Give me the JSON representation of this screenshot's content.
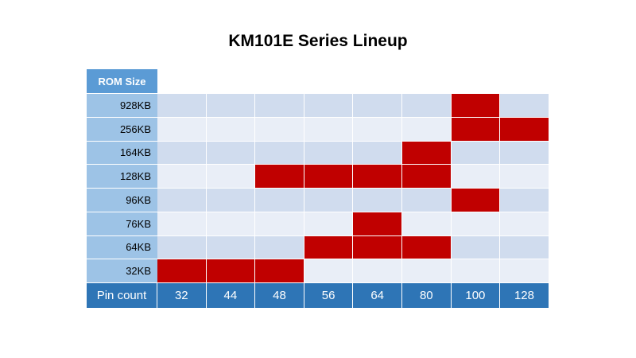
{
  "title": "KM101E Series Lineup",
  "chart_data": {
    "type": "table",
    "title": "KM101E Series Lineup",
    "row_header": "ROM Size",
    "column_header": "Pin count",
    "rows": [
      "928KB",
      "256KB",
      "164KB",
      "128KB",
      "96KB",
      "76KB",
      "64KB",
      "32KB"
    ],
    "columns": [
      "32",
      "44",
      "48",
      "56",
      "64",
      "80",
      "100",
      "128"
    ],
    "available": {
      "928KB": [
        "100"
      ],
      "256KB": [
        "100",
        "128"
      ],
      "164KB": [
        "80"
      ],
      "128KB": [
        "48",
        "56",
        "64",
        "80"
      ],
      "96KB": [
        "100"
      ],
      "76KB": [
        "64"
      ],
      "64KB": [
        "56",
        "64",
        "80"
      ],
      "32KB": [
        "32",
        "44",
        "48"
      ]
    },
    "colors": {
      "available": "#c00000",
      "row_odd": "#d0dcee",
      "row_even": "#e9eef7",
      "row_label": "#9dc3e6",
      "header_dark": "#2e75b6",
      "header_corner": "#5b9bd5"
    }
  }
}
